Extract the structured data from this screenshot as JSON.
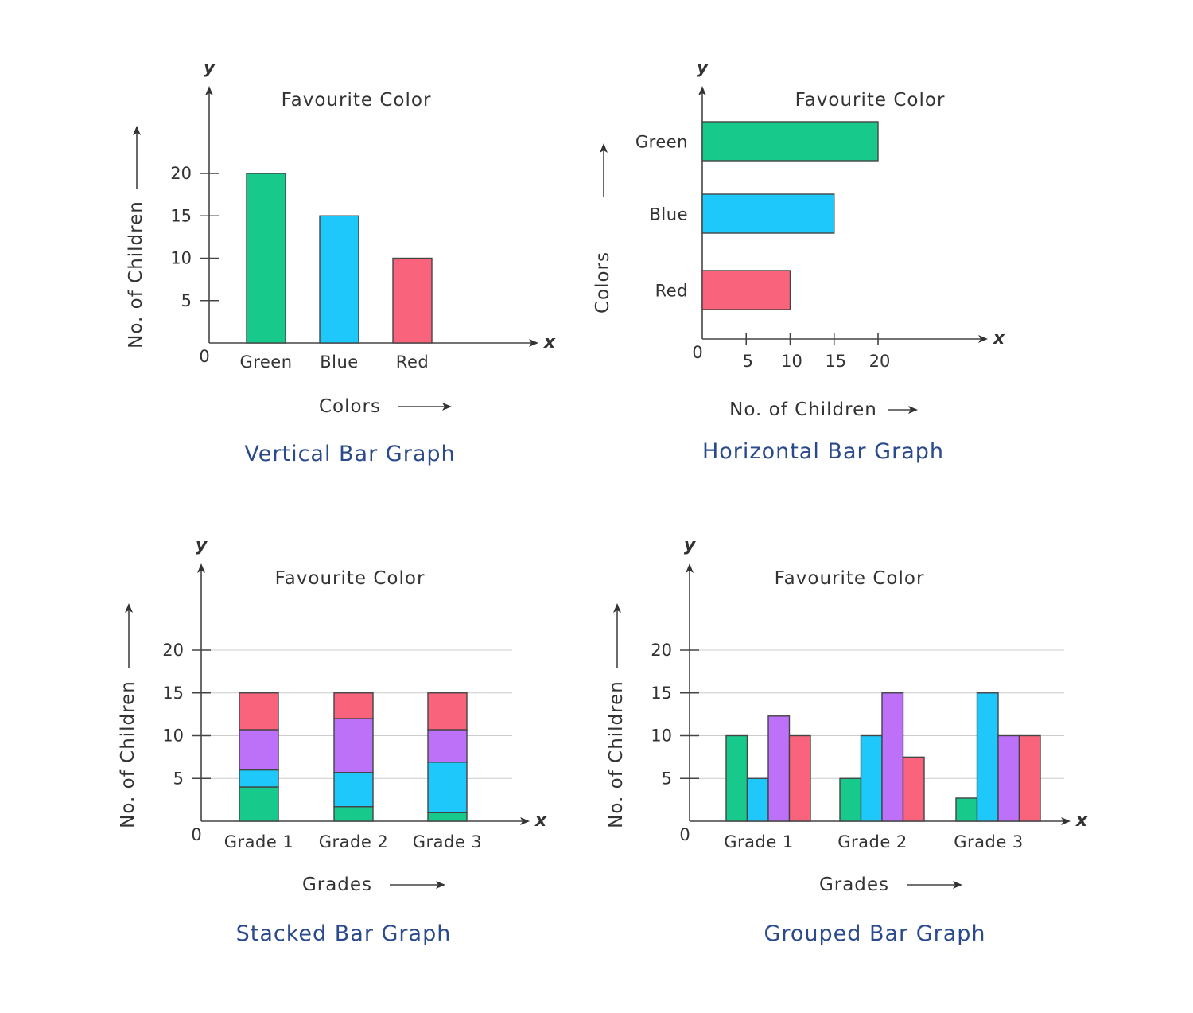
{
  "colors": {
    "green": "#18c98c",
    "blue": "#1ec8fb",
    "purple": "#bd70f8",
    "red": "#f9647c",
    "caption": "#2a4a8c"
  },
  "chart_data": [
    {
      "type": "bar",
      "orientation": "vertical",
      "title": "Favourite Color",
      "caption": "Vertical Bar Graph",
      "xlabel": "Colors",
      "ylabel": "No. of Children",
      "x_axis_letter": "x",
      "y_axis_letter": "y",
      "origin_label": "0",
      "categories": [
        "Green",
        "Blue",
        "Red"
      ],
      "category_colors": [
        "#18c98c",
        "#1ec8fb",
        "#f9647c"
      ],
      "values": [
        20,
        15,
        10
      ],
      "yticks": [
        5,
        10,
        15,
        20
      ],
      "ylim": [
        0,
        20
      ],
      "grid": false
    },
    {
      "type": "bar",
      "orientation": "horizontal",
      "title": "Favourite Color",
      "caption": "Horizontal Bar Graph",
      "xlabel": "No. of Children",
      "ylabel": "Colors",
      "x_axis_letter": "x",
      "y_axis_letter": "y",
      "origin_label": "0",
      "categories": [
        "Green",
        "Blue",
        "Red"
      ],
      "category_colors": [
        "#18c98c",
        "#1ec8fb",
        "#f9647c"
      ],
      "values": [
        20,
        15,
        10
      ],
      "xticks": [
        5,
        10,
        15,
        20
      ],
      "xlim": [
        0,
        20
      ],
      "grid": false
    },
    {
      "type": "bar",
      "stacked": true,
      "title": "Favourite Color",
      "caption": "Stacked Bar Graph",
      "xlabel": "Grades",
      "ylabel": "No. of Children",
      "x_axis_letter": "x",
      "y_axis_letter": "y",
      "origin_label": "0",
      "categories": [
        "Grade 1",
        "Grade 2",
        "Grade 3"
      ],
      "series": [
        {
          "color": "#18c98c",
          "values": [
            4,
            1.7,
            1
          ]
        },
        {
          "color": "#1ec8fb",
          "values": [
            2,
            4,
            5.9
          ]
        },
        {
          "color": "#bd70f8",
          "values": [
            4.7,
            6.3,
            3.8
          ]
        },
        {
          "color": "#f9647c",
          "values": [
            4.3,
            3,
            4.3
          ]
        }
      ],
      "yticks": [
        5,
        10,
        15,
        20
      ],
      "ylim": [
        0,
        20
      ],
      "grid": true
    },
    {
      "type": "bar",
      "grouped": true,
      "title": "Favourite Color",
      "caption": "Grouped Bar Graph",
      "xlabel": "Grades",
      "ylabel": "No. of Children",
      "x_axis_letter": "x",
      "y_axis_letter": "y",
      "origin_label": "0",
      "categories": [
        "Grade 1",
        "Grade 2",
        "Grade 3"
      ],
      "series": [
        {
          "color": "#18c98c",
          "values": [
            10,
            5,
            2.7
          ]
        },
        {
          "color": "#1ec8fb",
          "values": [
            5,
            10,
            15
          ]
        },
        {
          "color": "#bd70f8",
          "values": [
            12.3,
            15,
            10
          ]
        },
        {
          "color": "#f9647c",
          "values": [
            10,
            7.5,
            10
          ]
        }
      ],
      "yticks": [
        5,
        10,
        15,
        20
      ],
      "ylim": [
        0,
        20
      ],
      "grid": true
    }
  ]
}
